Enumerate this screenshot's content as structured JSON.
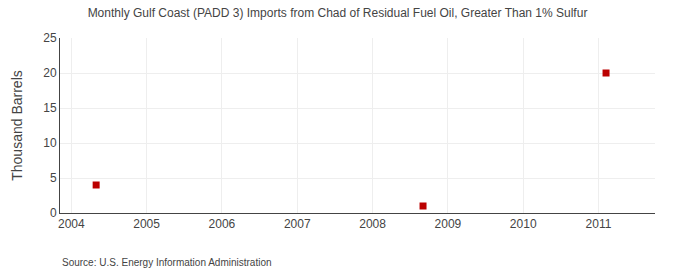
{
  "chart_data": {
    "type": "scatter",
    "title": "Monthly Gulf Coast (PADD 3) Imports from Chad of Residual Fuel Oil, Greater Than 1% Sulfur",
    "ylabel": "Thousand Barrels",
    "annotations": [
      "Source: U.S. Energy Information Administration"
    ],
    "x": [
      2004.33,
      2008.67,
      2011.1
    ],
    "values": [
      4,
      1,
      20
    ],
    "color": "#BB0000",
    "marker": "square",
    "xlim": [
      2003.85,
      2011.75
    ],
    "ylim": [
      0,
      25
    ],
    "xticks": [
      2004,
      2005,
      2006,
      2007,
      2008,
      2009,
      2010,
      2011
    ],
    "yticks": [
      0,
      5,
      10,
      15,
      20,
      25
    ],
    "grid": true
  }
}
